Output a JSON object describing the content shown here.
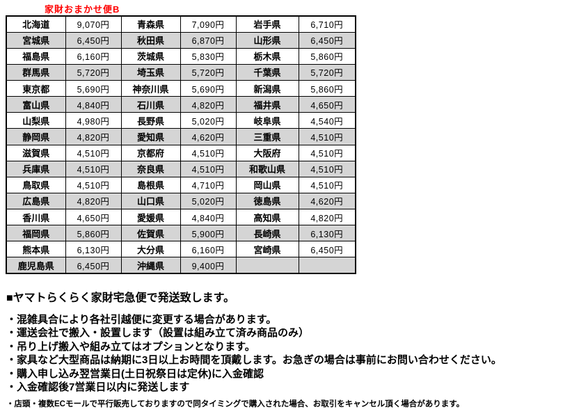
{
  "title": "家財おまかせ便B",
  "colors": {
    "title_red": "#ff0000",
    "row_shade": "#d5d5d5",
    "border_black": "#000000"
  },
  "table": {
    "rows": [
      [
        "北海道",
        "9,070円",
        "青森県",
        "7,090円",
        "岩手県",
        "6,710円"
      ],
      [
        "宮城県",
        "6,450円",
        "秋田県",
        "6,870円",
        "山形県",
        "6,450円"
      ],
      [
        "福島県",
        "6,160円",
        "茨城県",
        "5,830円",
        "栃木県",
        "5,860円"
      ],
      [
        "群馬県",
        "5,720円",
        "埼玉県",
        "5,720円",
        "千葉県",
        "5,720円"
      ],
      [
        "東京都",
        "5,690円",
        "神奈川県",
        "5,690円",
        "新潟県",
        "5,860円"
      ],
      [
        "富山県",
        "4,840円",
        "石川県",
        "4,820円",
        "福井県",
        "4,650円"
      ],
      [
        "山梨県",
        "4,980円",
        "長野県",
        "5,020円",
        "岐阜県",
        "4,540円"
      ],
      [
        "静岡県",
        "4,820円",
        "愛知県",
        "4,620円",
        "三重県",
        "4,510円"
      ],
      [
        "滋賀県",
        "4,510円",
        "京都府",
        "4,510円",
        "大阪府",
        "4,510円"
      ],
      [
        "兵庫県",
        "4,510円",
        "奈良県",
        "4,510円",
        "和歌山県",
        "4,510円"
      ],
      [
        "鳥取県",
        "4,510円",
        "島根県",
        "4,710円",
        "岡山県",
        "4,510円"
      ],
      [
        "広島県",
        "4,820円",
        "山口県",
        "5,020円",
        "徳島県",
        "4,620円"
      ],
      [
        "香川県",
        "4,650円",
        "愛媛県",
        "4,840円",
        "高知県",
        "4,820円"
      ],
      [
        "福岡県",
        "5,860円",
        "佐賀県",
        "5,900円",
        "長崎県",
        "6,130円"
      ],
      [
        "熊本県",
        "6,130円",
        "大分県",
        "6,160円",
        "宮崎県",
        "6,450円"
      ],
      [
        "鹿児島県",
        "6,450円",
        "沖縄県",
        "9,400円",
        "",
        ""
      ]
    ]
  },
  "notes": {
    "heading": "■ヤマトらくらく家財宅急便で発送致します。",
    "bullets": [
      "・混雑具合により各社引越便に変更する場合があります。",
      "・運送会社で搬入・設置します（設置は組み立て済み商品のみ）",
      "・吊り上げ搬入や組み立てはオプションとなります。",
      "・家具など大型商品は納期に3日以上お時間を頂戴します。お急ぎの場合は事前にお問い合わせください。",
      "・購入申し込み翌営業日(土日祝祭日は定休)に入金確認",
      "・入金確認後7営業日以内に発送します"
    ],
    "small_note": "・店頭・複数ECモールで平行販売しておりますので同タイミングで購入された場合、お取引をキャンセル頂く場合があります。"
  }
}
